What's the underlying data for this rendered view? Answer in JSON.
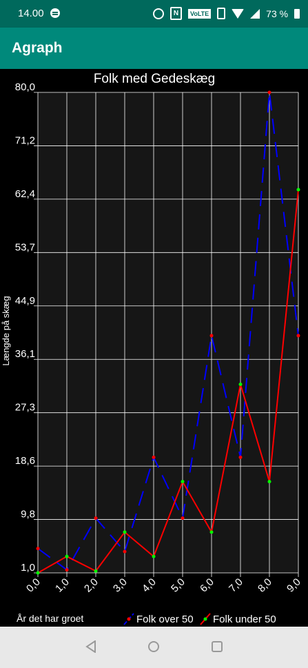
{
  "status_bar": {
    "time": "14.00",
    "volte": "VoLTE",
    "nfc": "N",
    "battery_percent": "73 %"
  },
  "app_bar": {
    "title": "Agraph"
  },
  "chart_data": {
    "type": "line",
    "title": "Folk med Gedeskæg",
    "xlabel": "År det har groet",
    "ylabel": "Længde på skæg",
    "x": [
      0,
      1,
      2,
      3,
      4,
      5,
      6,
      7,
      8,
      9
    ],
    "x_tick_labels": [
      "0,0",
      "1,0",
      "2,0",
      "3,0",
      "4,0",
      "5,0",
      "6,0",
      "7,0",
      "8,0",
      "9,0"
    ],
    "y_tick_labels": [
      "1,0",
      "9,8",
      "18,6",
      "27,3",
      "36,1",
      "44,9",
      "53,7",
      "62,4",
      "71,2",
      "80,0"
    ],
    "ylim": [
      1.0,
      80.0
    ],
    "xlim": [
      0,
      9
    ],
    "grid": true,
    "legend_position": "bottom",
    "series": [
      {
        "name": "Folk over 50",
        "color": "#0000ff",
        "marker_color": "#ff0000",
        "line_style": "dashed",
        "values": [
          5,
          1.5,
          10,
          4.5,
          20,
          10,
          40,
          20,
          80,
          40
        ]
      },
      {
        "name": "Folk under 50",
        "color": "#ff0000",
        "marker_color": "#00ff00",
        "line_style": "solid",
        "values": [
          1,
          3.7,
          1.3,
          7.7,
          3.7,
          16,
          7.7,
          32,
          16,
          64
        ]
      }
    ]
  }
}
